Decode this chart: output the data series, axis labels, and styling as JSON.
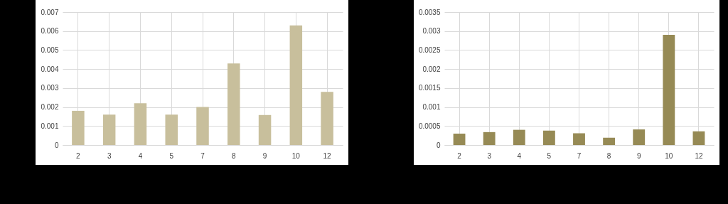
{
  "chart_data": [
    {
      "type": "bar",
      "categories": [
        "2",
        "3",
        "4",
        "5",
        "7",
        "8",
        "9",
        "10",
        "12"
      ],
      "values": [
        0.0018,
        0.0016,
        0.0022,
        0.0016,
        0.002,
        0.0043,
        0.00158,
        0.0063,
        0.0028
      ],
      "color": "#c8bf9c",
      "ylim": [
        0,
        0.007
      ],
      "yticks": [
        0,
        0.001,
        0.002,
        0.003,
        0.004,
        0.005,
        0.006,
        0.007
      ],
      "grid": true
    },
    {
      "type": "bar",
      "categories": [
        "2",
        "3",
        "4",
        "5",
        "7",
        "8",
        "9",
        "10",
        "12"
      ],
      "values": [
        0.0003,
        0.00034,
        0.0004,
        0.00038,
        0.00031,
        0.00019,
        0.00041,
        0.0029,
        0.00036
      ],
      "color": "#968a55",
      "ylim": [
        0,
        0.0035
      ],
      "yticks": [
        0,
        0.0005,
        0.001,
        0.0015,
        0.002,
        0.0025,
        0.003,
        0.0035
      ],
      "grid": true
    }
  ]
}
